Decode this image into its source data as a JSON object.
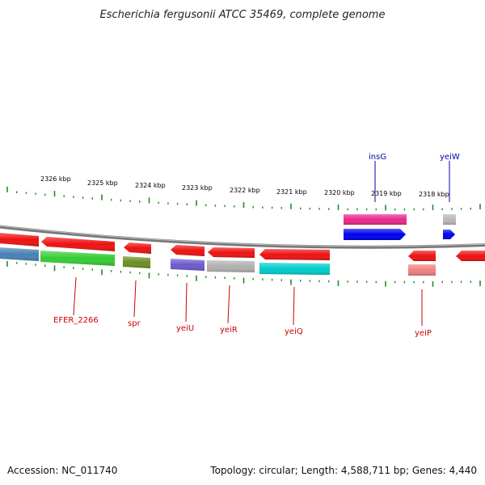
{
  "title": "Escherichia fergusonii ATCC 35469, complete genome",
  "footer": {
    "accession": "Accession: NC_011740",
    "topology": "Topology: circular; Length: 4,588,711 bp; Genes: 4,440"
  },
  "scale_labels": [
    "2326 kbp",
    "2325 kbp",
    "2324 kbp",
    "2323 kbp",
    "2322 kbp",
    "2321 kbp",
    "2320 kbp",
    "2319 kbp",
    "2318 kbp"
  ],
  "colors": {
    "backbone": "#888888",
    "ticks": "#228B22",
    "top_label": "#0000aa",
    "bottom_label": "#cc0000"
  },
  "gene_labels_top": [
    {
      "text": "insG",
      "color": "#0000aa"
    },
    {
      "text": "yeiW",
      "color": "#0000aa"
    }
  ],
  "gene_labels_bottom": [
    {
      "text": "EFER_2266",
      "color": "#cc0000"
    },
    {
      "text": "spr",
      "color": "#cc0000"
    },
    {
      "text": "yeiU",
      "color": "#cc0000"
    },
    {
      "text": "yeiR",
      "color": "#cc0000"
    },
    {
      "text": "yeiQ",
      "color": "#cc0000"
    },
    {
      "text": "yeiP",
      "color": "#cc0000"
    }
  ]
}
